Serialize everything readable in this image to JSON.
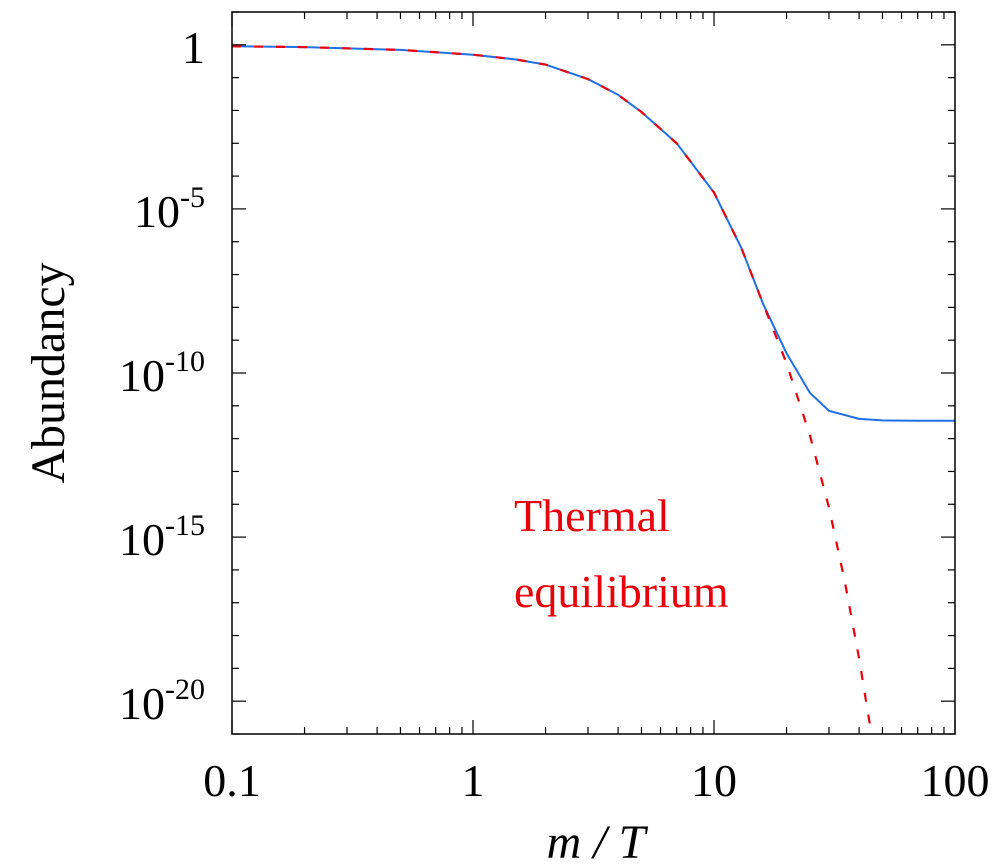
{
  "chart_data": {
    "type": "line",
    "title": "",
    "xlabel": "m / T",
    "ylabel": "Abundancy",
    "x_scale": "log",
    "y_scale": "log",
    "xlim": [
      0.1,
      100
    ],
    "ylim": [
      1e-21,
      10.0
    ],
    "x_ticks": [
      {
        "value": 0.1,
        "label": "0.1"
      },
      {
        "value": 1,
        "label": "1"
      },
      {
        "value": 10,
        "label": "10"
      },
      {
        "value": 100,
        "label": "100"
      }
    ],
    "y_ticks": [
      {
        "value": 1,
        "base": "1",
        "exp": ""
      },
      {
        "value": 1e-05,
        "base": "10",
        "exp": "-5"
      },
      {
        "value": 1e-10,
        "base": "10",
        "exp": "-10"
      },
      {
        "value": 1e-15,
        "base": "10",
        "exp": "-15"
      },
      {
        "value": 1e-20,
        "base": "10",
        "exp": "-20"
      }
    ],
    "grid": false,
    "series": [
      {
        "style": "solid",
        "color": "#1f6fe5",
        "x": [
          0.1,
          0.2,
          0.5,
          1,
          1.5,
          2,
          3,
          4,
          5,
          7,
          10,
          13,
          16,
          20,
          25,
          30,
          40,
          50,
          70,
          100
        ],
        "y": [
          0.9,
          0.85,
          0.7,
          0.5,
          0.36,
          0.25,
          0.09,
          0.03,
          0.009,
          0.001,
          3.16e-05,
          6.3e-07,
          1.26e-08,
          4e-10,
          2.5e-11,
          7e-12,
          4e-12,
          3.6e-12,
          3.5e-12,
          3.5e-12
        ]
      },
      {
        "style": "dashed",
        "color": "#e8000b",
        "x": [
          0.1,
          0.2,
          0.5,
          1,
          1.5,
          2,
          3,
          4,
          5,
          7,
          10,
          13,
          16,
          20,
          25,
          30,
          35,
          40,
          45
        ],
        "y": [
          0.9,
          0.85,
          0.7,
          0.5,
          0.36,
          0.25,
          0.09,
          0.03,
          0.009,
          0.001,
          3.16e-05,
          6.3e-07,
          1.26e-08,
          2e-10,
          1.26e-12,
          7.9e-15,
          4e-17,
          2e-19,
          1e-21
        ]
      }
    ],
    "annotations": [
      {
        "text": "Thermal",
        "color": "#e8000b"
      },
      {
        "text": "equilibrium",
        "color": "#e8000b"
      }
    ]
  }
}
